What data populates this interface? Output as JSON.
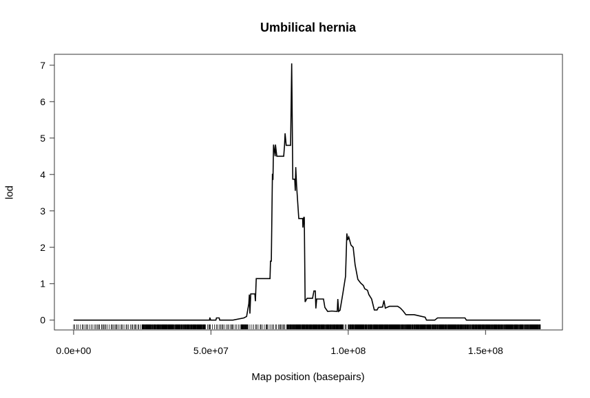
{
  "chart_data": {
    "type": "line",
    "title": "Umbilical hernia",
    "xlabel": "Map position (basepairs)",
    "ylabel": "lod",
    "xlim": [
      -7000000,
      178000000
    ],
    "ylim": [
      -0.27,
      7.3
    ],
    "x_ticks": [
      {
        "value": 0,
        "label": "0.0e+00"
      },
      {
        "value": 50000000,
        "label": "5.0e+07"
      },
      {
        "value": 100000000,
        "label": "1.0e+08"
      },
      {
        "value": 150000000,
        "label": "1.5e+08"
      }
    ],
    "y_ticks": [
      {
        "value": 0,
        "label": "0"
      },
      {
        "value": 1,
        "label": "1"
      },
      {
        "value": 2,
        "label": "2"
      },
      {
        "value": 3,
        "label": "3"
      },
      {
        "value": 4,
        "label": "4"
      },
      {
        "value": 5,
        "label": "5"
      },
      {
        "value": 6,
        "label": "6"
      },
      {
        "value": 7,
        "label": "7"
      }
    ],
    "grid": false,
    "series": [
      {
        "points": [
          [
            0,
            0
          ],
          [
            49500000,
            0
          ],
          [
            49600000,
            0.07
          ],
          [
            49900000,
            0
          ],
          [
            51800000,
            0
          ],
          [
            52000000,
            0.06
          ],
          [
            53000000,
            0.06
          ],
          [
            53200000,
            0
          ],
          [
            58000000,
            0
          ],
          [
            62000000,
            0.06
          ],
          [
            63000000,
            0.1
          ],
          [
            63800000,
            0.45
          ],
          [
            64000000,
            0.7
          ],
          [
            64200000,
            0.18
          ],
          [
            64500000,
            0.72
          ],
          [
            66000000,
            0.72
          ],
          [
            66200000,
            0.52
          ],
          [
            66500000,
            1.14
          ],
          [
            68000000,
            1.14
          ],
          [
            71500000,
            1.14
          ],
          [
            71700000,
            1.62
          ],
          [
            72000000,
            1.62
          ],
          [
            72400000,
            4.02
          ],
          [
            72600000,
            3.85
          ],
          [
            72800000,
            4.82
          ],
          [
            73400000,
            4.5
          ],
          [
            73500000,
            4.82
          ],
          [
            74000000,
            4.5
          ],
          [
            76500000,
            4.5
          ],
          [
            76800000,
            4.8
          ],
          [
            77000000,
            5.13
          ],
          [
            77400000,
            4.8
          ],
          [
            79000000,
            4.8
          ],
          [
            79400000,
            7.05
          ],
          [
            79800000,
            3.87
          ],
          [
            80500000,
            3.87
          ],
          [
            80700000,
            3.55
          ],
          [
            80900000,
            4.2
          ],
          [
            81200000,
            3.7
          ],
          [
            82000000,
            2.79
          ],
          [
            83400000,
            2.79
          ],
          [
            83500000,
            2.54
          ],
          [
            83800000,
            2.82
          ],
          [
            84000000,
            2.82
          ],
          [
            84300000,
            0.5
          ],
          [
            85000000,
            0.6
          ],
          [
            87000000,
            0.6
          ],
          [
            87500000,
            0.8
          ],
          [
            88000000,
            0.8
          ],
          [
            88200000,
            0.32
          ],
          [
            88500000,
            0.58
          ],
          [
            91000000,
            0.58
          ],
          [
            91500000,
            0.35
          ],
          [
            92500000,
            0.24
          ],
          [
            94000000,
            0.25
          ],
          [
            96000000,
            0.24
          ],
          [
            96200000,
            0.58
          ],
          [
            96500000,
            0.24
          ],
          [
            97000000,
            0.27
          ],
          [
            98000000,
            0.72
          ],
          [
            99000000,
            1.2
          ],
          [
            99500000,
            2.38
          ],
          [
            99800000,
            2.2
          ],
          [
            100200000,
            2.28
          ],
          [
            101000000,
            2.06
          ],
          [
            101800000,
            2.0
          ],
          [
            102500000,
            1.52
          ],
          [
            103500000,
            1.12
          ],
          [
            104500000,
            1.02
          ],
          [
            105500000,
            0.95
          ],
          [
            106000000,
            0.86
          ],
          [
            107000000,
            0.82
          ],
          [
            107500000,
            0.7
          ],
          [
            108500000,
            0.58
          ],
          [
            109500000,
            0.28
          ],
          [
            110500000,
            0.28
          ],
          [
            111000000,
            0.35
          ],
          [
            112500000,
            0.36
          ],
          [
            113000000,
            0.54
          ],
          [
            113500000,
            0.33
          ],
          [
            115000000,
            0.38
          ],
          [
            118000000,
            0.38
          ],
          [
            119000000,
            0.33
          ],
          [
            120000000,
            0.25
          ],
          [
            121000000,
            0.15
          ],
          [
            124000000,
            0.15
          ],
          [
            128000000,
            0.08
          ],
          [
            128500000,
            0.0
          ],
          [
            131500000,
            0.0
          ],
          [
            132500000,
            0.06
          ],
          [
            142500000,
            0.06
          ],
          [
            143000000,
            0.0
          ],
          [
            170000000,
            0.0
          ]
        ]
      }
    ],
    "markers": {
      "dense_ranges": [
        [
          25000000,
          48000000
        ],
        [
          61000000,
          63500000
        ],
        [
          78000000,
          98000000
        ],
        [
          100000000,
          170000000
        ]
      ],
      "sparse_ranges": [
        [
          0,
          25000000
        ],
        [
          48000000,
          61000000
        ],
        [
          63500000,
          78000000
        ],
        [
          98000000,
          100000000
        ]
      ],
      "dense_step": 160000,
      "sparse_step": 520000
    }
  }
}
